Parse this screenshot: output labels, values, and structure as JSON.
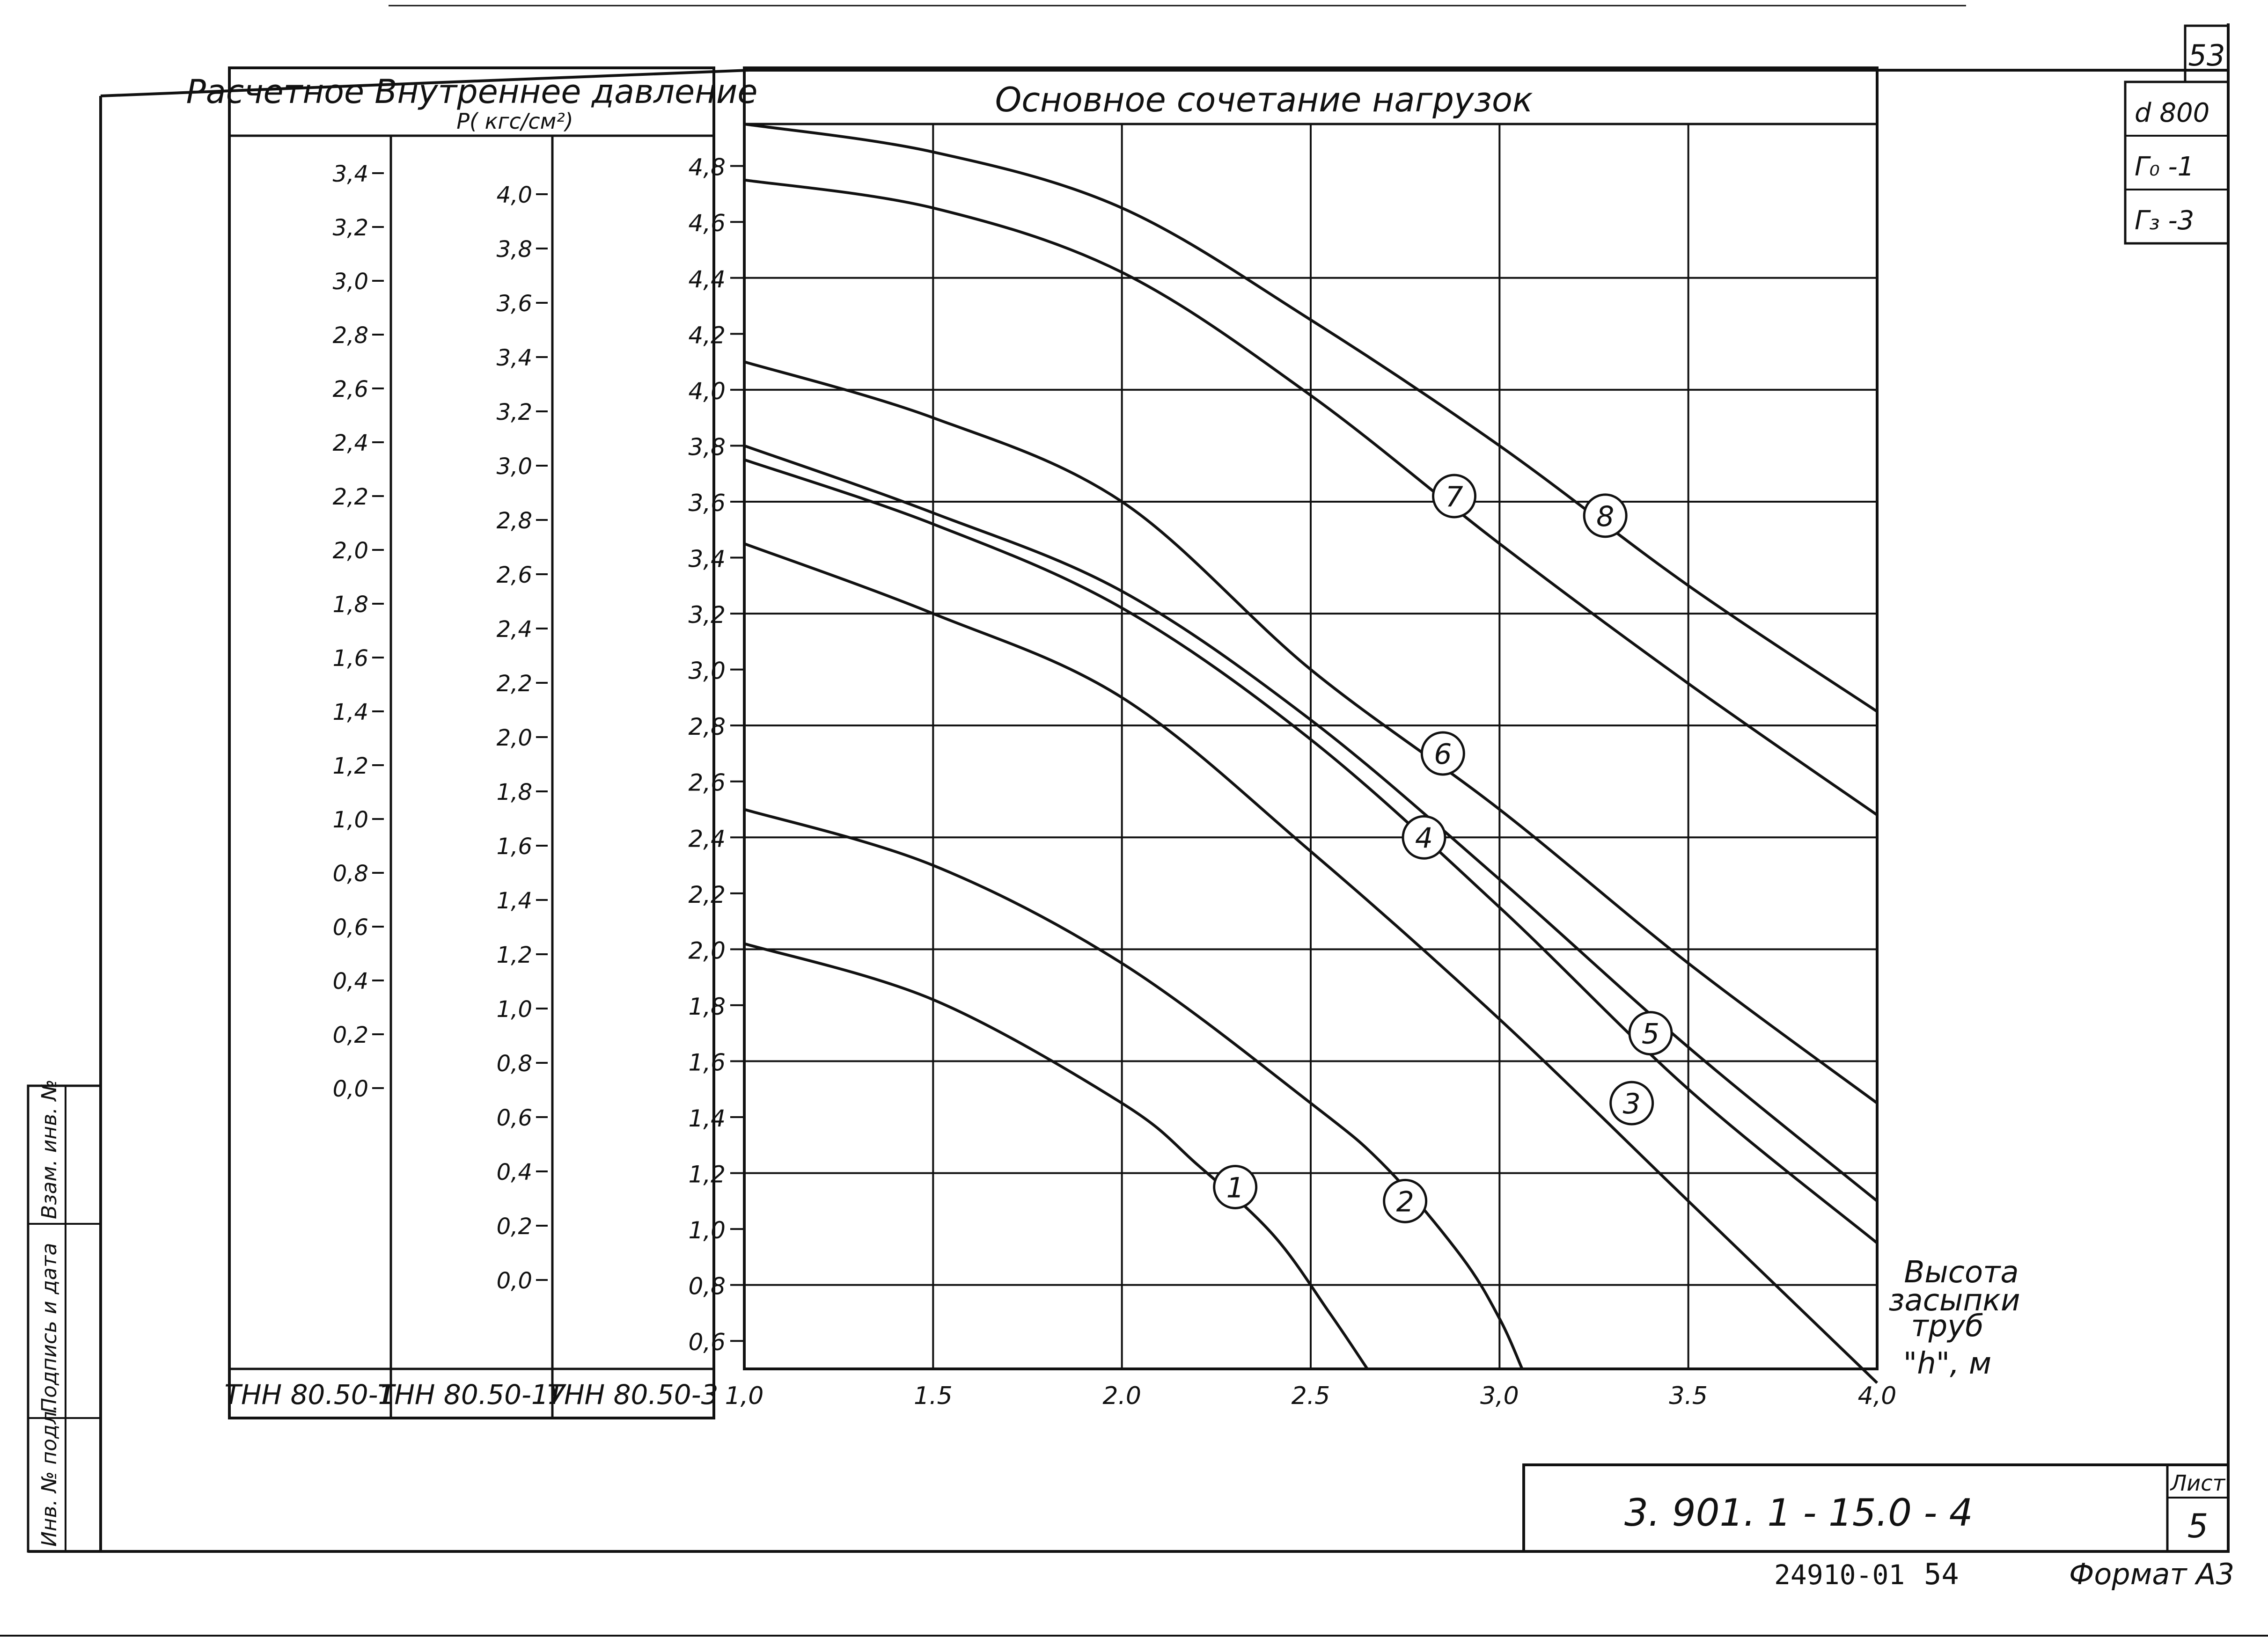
{
  "sheet": {
    "page_number": "53",
    "corner": [
      "d 800",
      "Г₀ -1",
      "Г₃ -3"
    ],
    "side_stamp": [
      "Инв. № подл.",
      "Подпись и дата",
      "Взам. инв. №"
    ],
    "doc_code": "3. 901. 1 - 15.0 - 4",
    "list_label": "Лист",
    "list_number": "5",
    "archive_number": "24910-01",
    "archive_page": "54",
    "format": "Формат А3"
  },
  "pressure_table": {
    "header_line1": "Расчетное Внутреннее давление",
    "header_line2": "P( кгс/см²)",
    "columns": [
      {
        "label": "ТНН 80.50-1",
        "ticks": [
          "3,4",
          "3,2",
          "3,0",
          "2,8",
          "2,6",
          "2,4",
          "2,2",
          "2,0",
          "1,8",
          "1,6",
          "1,4",
          "1,2",
          "1,0",
          "0,8",
          "0,6",
          "0,4",
          "0,2",
          "0,0"
        ]
      },
      {
        "label": "ТНН 80.50-1У",
        "ticks": [
          "4,0",
          "3,8",
          "3,6",
          "3,4",
          "3,2",
          "3,0",
          "2,8",
          "2,6",
          "2,4",
          "2,2",
          "2,0",
          "1,8",
          "1,6",
          "1,4",
          "1,2",
          "1,0",
          "0,8",
          "0,6",
          "0,4",
          "0,2",
          "0,0"
        ]
      },
      {
        "label": "ТНН 80.50-3",
        "ticks": [
          "4,8",
          "4,6",
          "4,4",
          "4,2",
          "4,0",
          "3,8",
          "3,6",
          "3,4",
          "3,2",
          "3,0",
          "2,8",
          "2,6",
          "2,4",
          "2,2",
          "2,0",
          "1,8",
          "1,6",
          "1,4",
          "1,2",
          "1,0",
          "0,8",
          "0,6"
        ]
      }
    ]
  },
  "chart_data": {
    "type": "line",
    "title": "Основное сочетание нагрузок",
    "xlabel": "Высота засыпки труб \"h\", м",
    "x_ticks": [
      "1,0",
      "1.5",
      "2.0",
      "2.5",
      "3,0",
      "3.5",
      "4,0"
    ],
    "xlim": [
      1.0,
      4.0
    ],
    "ylim": [
      0.5,
      4.95
    ],
    "grid": true,
    "series": [
      {
        "name": "1",
        "points": [
          [
            1.0,
            2.02
          ],
          [
            1.5,
            1.82
          ],
          [
            2.0,
            1.45
          ],
          [
            2.2,
            1.23
          ],
          [
            2.4,
            0.98
          ],
          [
            2.55,
            0.7
          ],
          [
            2.65,
            0.5
          ]
        ]
      },
      {
        "name": "2",
        "points": [
          [
            1.0,
            2.5
          ],
          [
            1.5,
            2.3
          ],
          [
            2.0,
            1.95
          ],
          [
            2.5,
            1.45
          ],
          [
            2.7,
            1.22
          ],
          [
            2.9,
            0.9
          ],
          [
            3.0,
            0.68
          ],
          [
            3.06,
            0.5
          ]
        ]
      },
      {
        "name": "3",
        "points": [
          [
            1.0,
            3.45
          ],
          [
            1.5,
            3.2
          ],
          [
            2.0,
            2.9
          ],
          [
            2.5,
            2.35
          ],
          [
            3.0,
            1.75
          ],
          [
            3.5,
            1.1
          ],
          [
            4.0,
            0.45
          ]
        ]
      },
      {
        "name": "4",
        "points": [
          [
            1.0,
            3.75
          ],
          [
            1.5,
            3.52
          ],
          [
            2.0,
            3.22
          ],
          [
            2.5,
            2.75
          ],
          [
            3.0,
            2.15
          ],
          [
            3.5,
            1.5
          ],
          [
            4.0,
            0.95
          ]
        ]
      },
      {
        "name": "5",
        "points": [
          [
            1.0,
            3.8
          ],
          [
            1.5,
            3.56
          ],
          [
            2.0,
            3.28
          ],
          [
            2.5,
            2.82
          ],
          [
            3.0,
            2.25
          ],
          [
            3.5,
            1.65
          ],
          [
            4.0,
            1.1
          ]
        ]
      },
      {
        "name": "6",
        "points": [
          [
            1.0,
            4.1
          ],
          [
            1.5,
            3.9
          ],
          [
            2.0,
            3.6
          ],
          [
            2.5,
            3.0
          ],
          [
            3.0,
            2.5
          ],
          [
            3.5,
            1.95
          ],
          [
            4.0,
            1.45
          ]
        ]
      },
      {
        "name": "7",
        "points": [
          [
            1.0,
            4.75
          ],
          [
            1.5,
            4.65
          ],
          [
            2.0,
            4.42
          ],
          [
            2.5,
            3.98
          ],
          [
            3.0,
            3.45
          ],
          [
            3.5,
            2.95
          ],
          [
            4.0,
            2.48
          ]
        ]
      },
      {
        "name": "8",
        "points": [
          [
            1.0,
            4.95
          ],
          [
            1.5,
            4.85
          ],
          [
            2.0,
            4.65
          ],
          [
            2.5,
            4.25
          ],
          [
            3.0,
            3.8
          ],
          [
            3.5,
            3.3
          ],
          [
            4.0,
            2.85
          ]
        ]
      }
    ],
    "label_positions": [
      [
        2.3,
        1.15
      ],
      [
        2.75,
        1.1
      ],
      [
        3.35,
        1.45
      ],
      [
        2.8,
        2.4
      ],
      [
        3.4,
        1.7
      ],
      [
        2.85,
        2.7
      ],
      [
        2.88,
        3.62
      ],
      [
        3.28,
        3.55
      ]
    ]
  }
}
